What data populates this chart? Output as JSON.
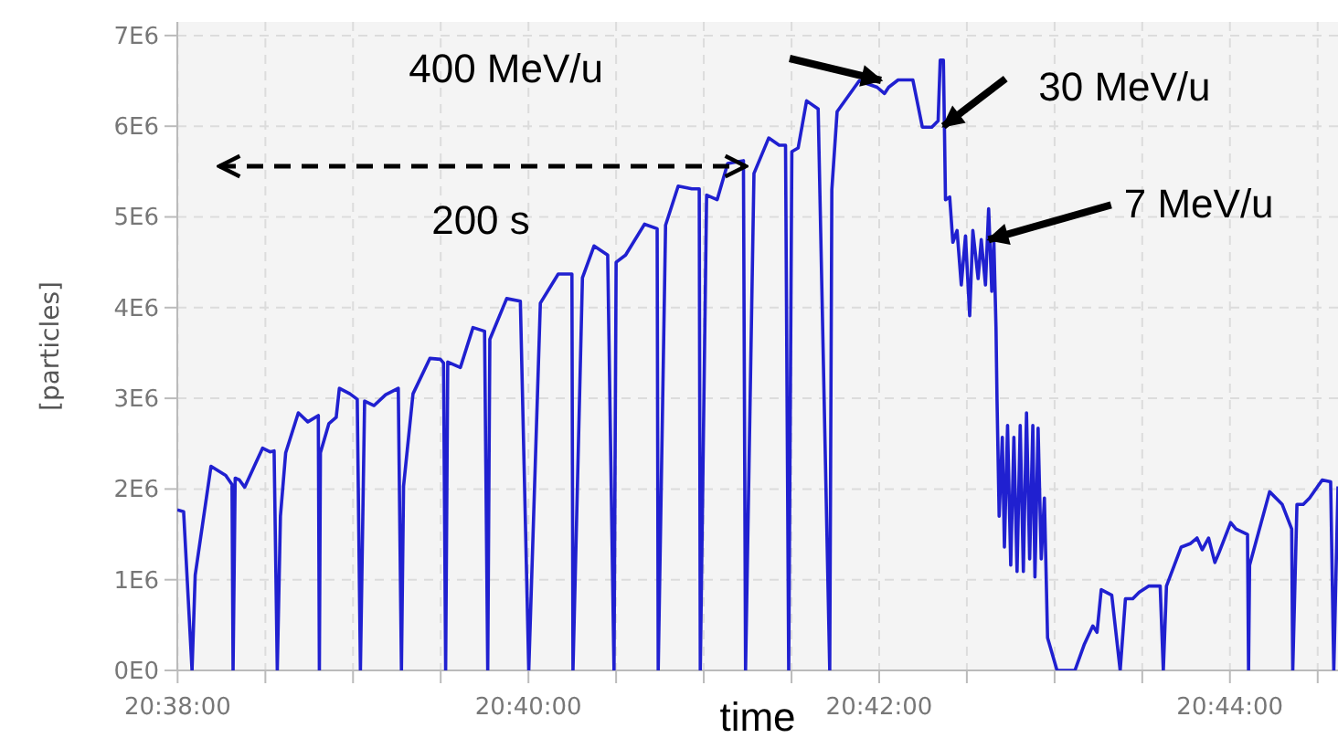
{
  "chart_data": {
    "type": "line",
    "xlabel": "time",
    "ylabel": "[particles]",
    "xlim": [
      20.6333,
      20.7436
    ],
    "ylim": [
      0,
      7150000
    ],
    "xticks": [
      {
        "value": 20.63333,
        "label": "20:38:00"
      },
      {
        "value": 20.64167,
        "label": null
      },
      {
        "value": 20.65,
        "label": null
      },
      {
        "value": 20.65833,
        "label": null
      },
      {
        "value": 20.66667,
        "label": "20:40:00"
      },
      {
        "value": 20.675,
        "label": null
      },
      {
        "value": 20.68333,
        "label": null
      },
      {
        "value": 20.69167,
        "label": null
      },
      {
        "value": 20.7,
        "label": "20:42:00"
      },
      {
        "value": 20.70833,
        "label": null
      },
      {
        "value": 20.71667,
        "label": null
      },
      {
        "value": 20.725,
        "label": null
      },
      {
        "value": 20.73333,
        "label": "20:44:00"
      },
      {
        "value": 20.74167,
        "label": null
      }
    ],
    "yticks": [
      {
        "value": 0,
        "label": "0E0"
      },
      {
        "value": 1000000,
        "label": "1E6"
      },
      {
        "value": 2000000,
        "label": "2E6"
      },
      {
        "value": 3000000,
        "label": "3E6"
      },
      {
        "value": 4000000,
        "label": "4E6"
      },
      {
        "value": 5000000,
        "label": "5E6"
      },
      {
        "value": 6000000,
        "label": "6E6"
      },
      {
        "value": 7000000,
        "label": "7E6"
      }
    ],
    "grid": true,
    "marker": "none",
    "line_style": "solid",
    "annotations": [
      "400 MeV/u",
      {
        "text": "30 MeV/u",
        "x": 20.7061,
        "y": 6000000
      },
      {
        "text": "7 MeV/u",
        "x": 20.7104,
        "y": 4750000
      },
      "200 s"
    ],
    "series": [
      {
        "color": "#2020d0",
        "x": [
          20.6333,
          20.6339,
          20.6347,
          20.635,
          20.6365,
          20.6379,
          20.6385,
          20.6386,
          20.6388,
          20.6392,
          20.6397,
          20.6414,
          20.6421,
          20.6425,
          20.6428,
          20.6431,
          20.6436,
          20.6448,
          20.6457,
          20.6467,
          20.6468,
          20.6469,
          20.6477,
          20.6484,
          20.6487,
          20.6497,
          20.6504,
          20.6507,
          20.6511,
          20.652,
          20.6531,
          20.6543,
          20.6546,
          20.6548,
          20.6557,
          20.6573,
          20.6583,
          20.6586,
          20.6588,
          20.659,
          20.6602,
          20.6614,
          20.6625,
          20.6628,
          20.663,
          20.6646,
          20.6659,
          20.6667,
          20.6678,
          20.6695,
          20.6708,
          20.6709,
          20.6718,
          20.6729,
          20.6742,
          20.6748,
          20.675,
          20.6759,
          20.6777,
          20.6789,
          20.679,
          20.6797,
          20.6809,
          20.6822,
          20.6829,
          20.683,
          20.6836,
          20.6846,
          20.6856,
          20.6871,
          20.6873,
          20.6881,
          20.6895,
          20.6905,
          20.6911,
          20.6914,
          20.6917,
          20.6923,
          20.6931,
          20.6942,
          20.6953,
          20.6955,
          20.696,
          20.6981,
          20.6998,
          20.7005,
          20.7009,
          20.7018,
          20.7032,
          20.7041,
          20.705,
          20.7056,
          20.7058,
          20.7061,
          20.7062,
          20.7063,
          20.7067,
          20.707,
          20.7074,
          20.7078,
          20.7082,
          20.7086,
          20.7089,
          20.7094,
          20.7097,
          20.7101,
          20.7104,
          20.7107,
          20.7109,
          20.7111,
          20.7112,
          20.7114,
          20.7117,
          20.7119,
          20.7122,
          20.7125,
          20.7128,
          20.7131,
          20.7134,
          20.7137,
          20.714,
          20.7143,
          20.7146,
          20.7148,
          20.7151,
          20.7154,
          20.7157,
          20.716,
          20.7169,
          20.7186,
          20.7195,
          20.7203,
          20.7207,
          20.7211,
          20.7221,
          20.7229,
          20.7234,
          20.7241,
          20.7247,
          20.7256,
          20.7267,
          20.727,
          20.7273,
          20.7287,
          20.7296,
          20.7302,
          20.7307,
          20.7313,
          20.7319,
          20.7323,
          20.7334,
          20.7339,
          20.735,
          20.7351,
          20.7352,
          20.7371,
          20.7383,
          20.7392,
          20.7393,
          20.7397,
          20.7403,
          20.7409,
          20.7421,
          20.7429,
          20.7432,
          20.7436
        ],
        "values": [
          1770000,
          1750000,
          0,
          1050000,
          2250000,
          2150000,
          2050000,
          0,
          2120000,
          2100000,
          2020000,
          2450000,
          2410000,
          2420000,
          0,
          1700000,
          2400000,
          2840000,
          2740000,
          2810000,
          0,
          2400000,
          2720000,
          2790000,
          3110000,
          3050000,
          2990000,
          0,
          2970000,
          2920000,
          3040000,
          3110000,
          0,
          2030000,
          3050000,
          3440000,
          3430000,
          3390000,
          0,
          3400000,
          3340000,
          3780000,
          3740000,
          0,
          3650000,
          4100000,
          4070000,
          0,
          4050000,
          4370000,
          4370000,
          0,
          4330000,
          4680000,
          4580000,
          0,
          4500000,
          4580000,
          4920000,
          4870000,
          0,
          4910000,
          5340000,
          5310000,
          5310000,
          0,
          5240000,
          5190000,
          5590000,
          5620000,
          0,
          5480000,
          5870000,
          5790000,
          5790000,
          0,
          5720000,
          5760000,
          6280000,
          6190000,
          0,
          5300000,
          6160000,
          6500000,
          6430000,
          6360000,
          6430000,
          6510000,
          6510000,
          5990000,
          5990000,
          6060000,
          6730000,
          6730000,
          5990000,
          5190000,
          5220000,
          4720000,
          4850000,
          4250000,
          4790000,
          3910000,
          4850000,
          4320000,
          4750000,
          4250000,
          5090000,
          4180000,
          4720000,
          3780000,
          2970000,
          1700000,
          2570000,
          1360000,
          2700000,
          1160000,
          2570000,
          1090000,
          2700000,
          1090000,
          2840000,
          1230000,
          2700000,
          1030000,
          2670000,
          1230000,
          1900000,
          360000,
          0,
          0,
          290000,
          490000,
          420000,
          890000,
          830000,
          0,
          790000,
          790000,
          860000,
          930000,
          930000,
          0,
          930000,
          1360000,
          1400000,
          1460000,
          1330000,
          1460000,
          1190000,
          1300000,
          1630000,
          1560000,
          1500000,
          0,
          1160000,
          1970000,
          1830000,
          1560000,
          0,
          1830000,
          1830000,
          1900000,
          2100000,
          2080000,
          0,
          2030000
        ]
      }
    ]
  }
}
